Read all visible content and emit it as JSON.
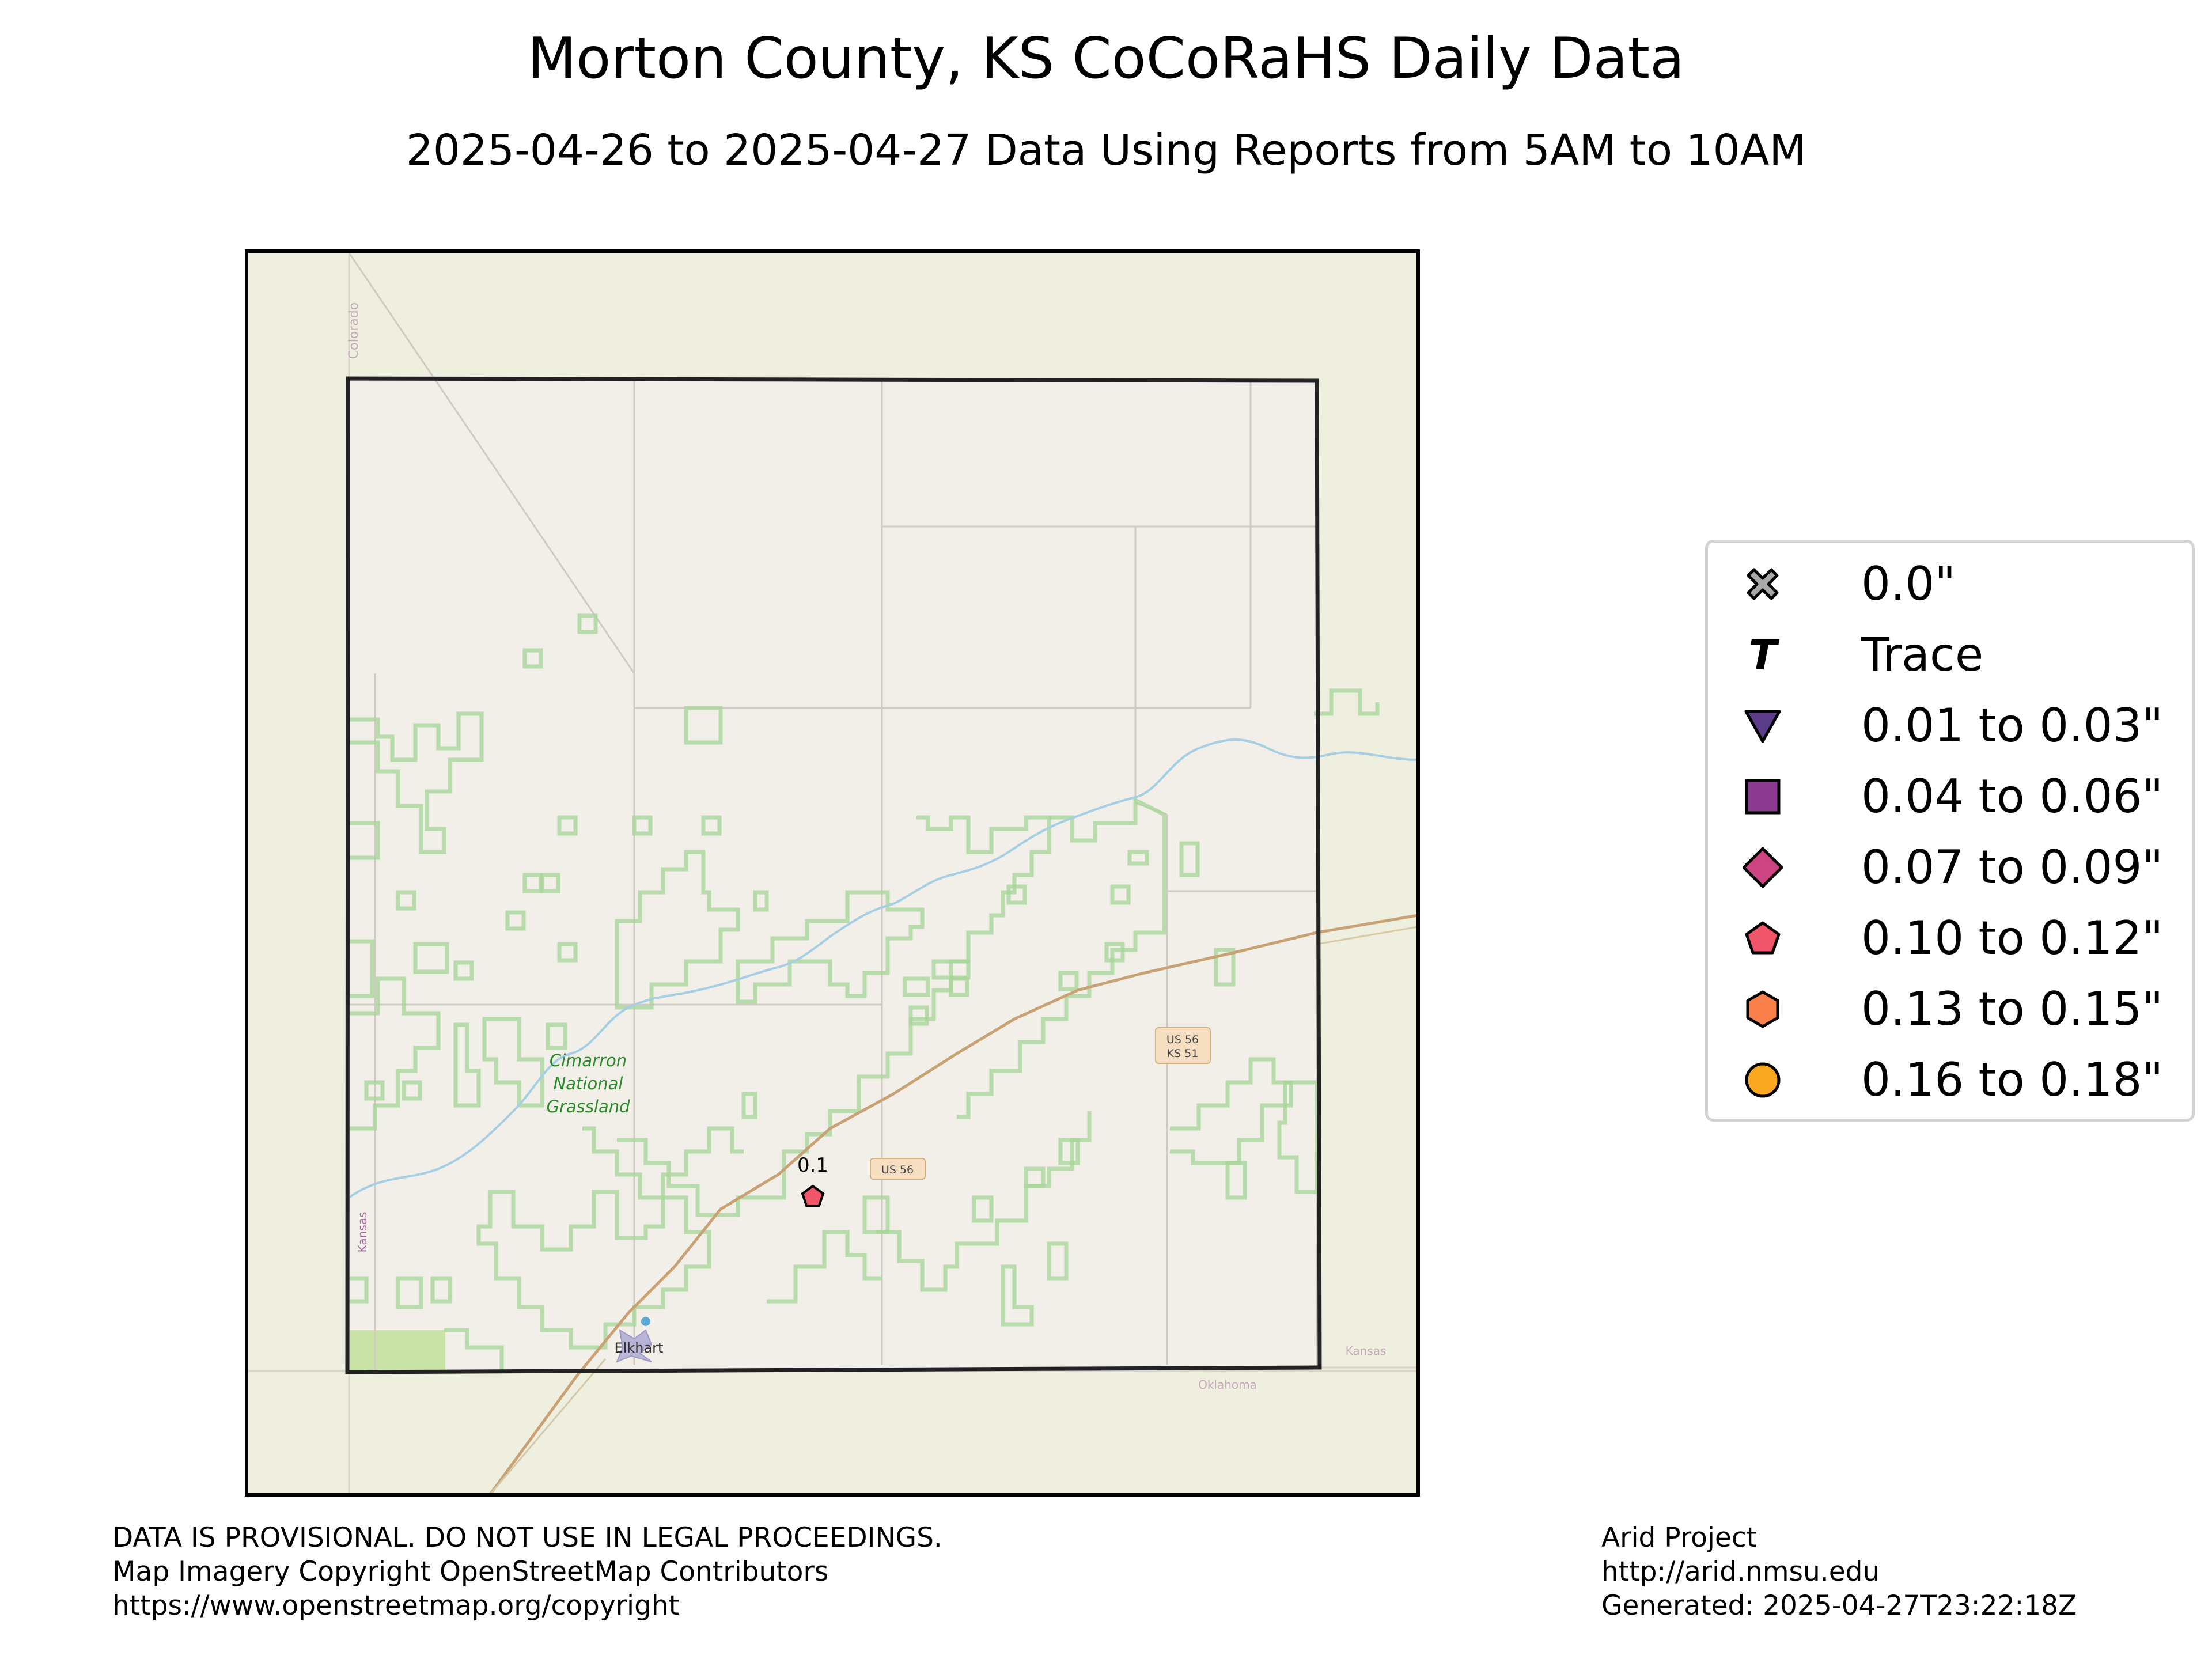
{
  "title": "Morton County, KS CoCoRaHS Daily Data",
  "subtitle": "2025-04-26 to 2025-04-27 Data Using Reports from 5AM to 10AM",
  "map": {
    "state_labels": {
      "colorado": "Colorado",
      "kansas_west": "Kansas",
      "kansas_east": "Kansas",
      "oklahoma": "Oklahoma"
    },
    "place_labels": {
      "grassland_line1": "Cimarron",
      "grassland_line2": "National",
      "grassland_line3": "Grassland",
      "town": "Elkhart"
    },
    "road_shields": {
      "us56_ks51_line1": "US 56",
      "us56_ks51_line2": "KS 51",
      "us56": "US 56"
    },
    "station": {
      "value_label": "0.1",
      "category": "0.10 to 0.12\"",
      "color": "#f0556a"
    }
  },
  "legend": {
    "items": [
      {
        "label": "0.0\"",
        "symbol": "x-mark",
        "color": "#a9a9a9"
      },
      {
        "label": "Trace",
        "symbol": "t-glyph",
        "color": "#000000"
      },
      {
        "label": "0.01 to 0.03\"",
        "symbol": "triangle-down",
        "color": "#5b3d8a"
      },
      {
        "label": "0.04 to 0.06\"",
        "symbol": "square",
        "color": "#8c3b91"
      },
      {
        "label": "0.07 to 0.09\"",
        "symbol": "diamond",
        "color": "#cc4482"
      },
      {
        "label": "0.10 to 0.12\"",
        "symbol": "pentagon",
        "color": "#f0556a"
      },
      {
        "label": "0.13 to 0.15\"",
        "symbol": "hexagon",
        "color": "#f9804a"
      },
      {
        "label": "0.16 to 0.18\"",
        "symbol": "circle",
        "color": "#f9a81f"
      }
    ]
  },
  "footer": {
    "left_line1": "DATA IS PROVISIONAL. DO NOT USE IN LEGAL PROCEEDINGS.",
    "left_line2": "Map Imagery Copyright OpenStreetMap Contributors",
    "left_line3": "https://www.openstreetmap.org/copyright",
    "right_line1": "Arid Project",
    "right_line2": "http://arid.nmsu.edu",
    "right_line3": "Generated: 2025-04-27T23:22:18Z"
  }
}
